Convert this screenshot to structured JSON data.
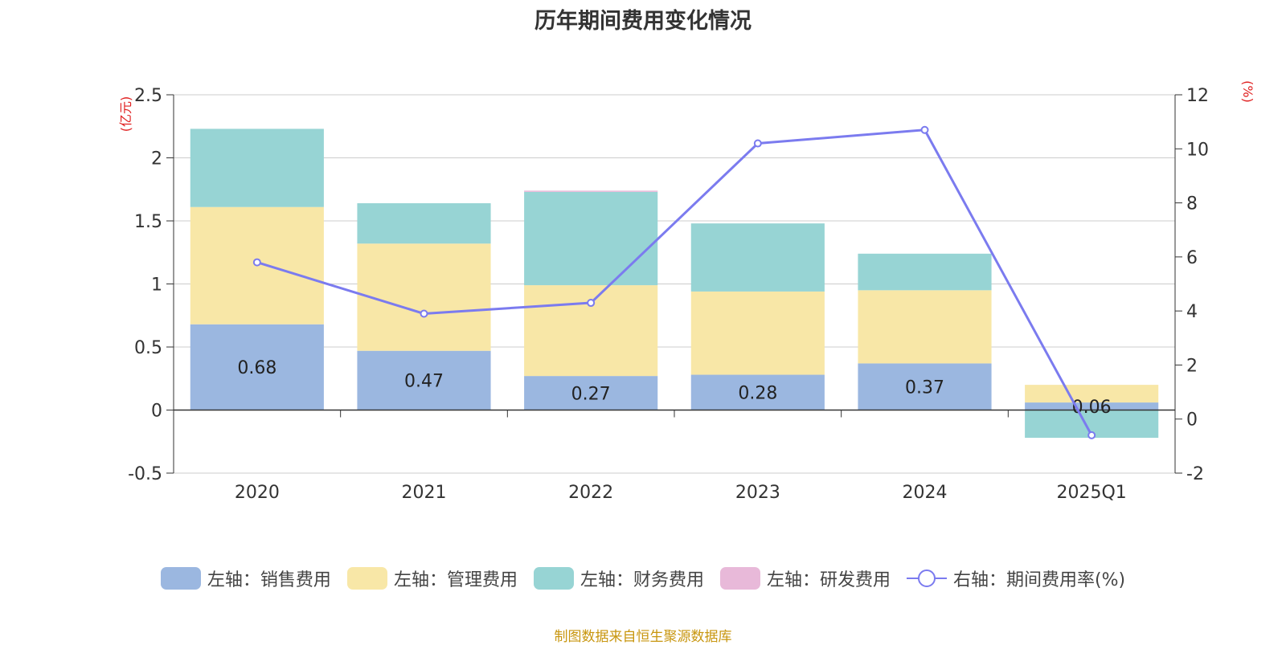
{
  "colors": {
    "sales": "#9bb7e0",
    "admin": "#f8e7a7",
    "finance": "#97d4d4",
    "rd": "#e8b9d9",
    "rate": "#7b7bef",
    "unit": "#e02020",
    "source": "#c8960f"
  },
  "chart_data": {
    "type": "bar+line",
    "title": "历年期间费用变化情况",
    "categories": [
      "2020",
      "2021",
      "2022",
      "2023",
      "2024",
      "2025Q1"
    ],
    "left_axis": {
      "unit": "(亿元)",
      "ylim": [
        -0.5,
        2.5
      ],
      "ticks": [
        -0.5,
        0,
        0.5,
        1,
        1.5,
        2,
        2.5
      ]
    },
    "right_axis": {
      "unit": "(%)",
      "ylim": [
        -2,
        12
      ],
      "ticks": [
        -2,
        0,
        2,
        4,
        6,
        8,
        10,
        12
      ]
    },
    "grid": true,
    "legend_position": "bottom",
    "series": [
      {
        "name": "左轴：销售费用",
        "type": "bar",
        "axis": "left",
        "color_key": "sales",
        "values": [
          0.68,
          0.47,
          0.27,
          0.28,
          0.37,
          0.06
        ],
        "labels": [
          "0.68",
          "0.47",
          "0.27",
          "0.28",
          "0.37",
          "0.06"
        ]
      },
      {
        "name": "左轴：管理费用",
        "type": "bar",
        "axis": "left",
        "color_key": "admin",
        "values": [
          0.93,
          0.85,
          0.72,
          0.66,
          0.58,
          0.14
        ]
      },
      {
        "name": "左轴：财务费用",
        "type": "bar",
        "axis": "left",
        "color_key": "finance",
        "values": [
          0.62,
          0.32,
          0.74,
          0.54,
          0.29,
          -0.22
        ]
      },
      {
        "name": "左轴：研发费用",
        "type": "bar",
        "axis": "left",
        "color_key": "rd",
        "values": [
          0,
          0,
          0.01,
          0,
          0,
          0
        ]
      },
      {
        "name": "右轴：期间费用率(%)",
        "type": "line",
        "axis": "right",
        "color_key": "rate",
        "values": [
          5.8,
          3.9,
          4.3,
          10.2,
          10.7,
          -0.6
        ]
      }
    ]
  },
  "source": "制图数据来自恒生聚源数据库"
}
